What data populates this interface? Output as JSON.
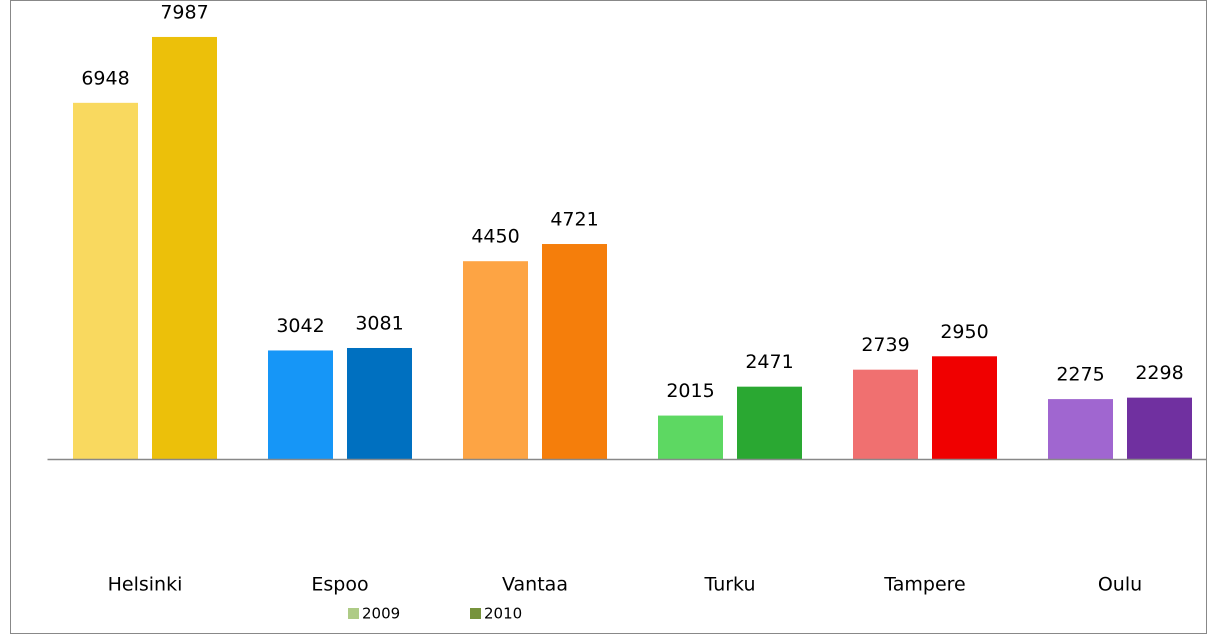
{
  "chart_data": {
    "type": "bar",
    "categories": [
      "Helsinki",
      "Espoo",
      "Vantaa",
      "Turku",
      "Tampere",
      "Oulu"
    ],
    "series": [
      {
        "name": "2009",
        "color": "#aecb86",
        "values": [
          6948,
          3042,
          4450,
          2015,
          2739,
          2275
        ],
        "bar_colors": [
          "#f9d95f",
          "#1696f7",
          "#fda444",
          "#5dd862",
          "#f07070",
          "#a066d0"
        ]
      },
      {
        "name": "2010",
        "color": "#77933c",
        "values": [
          7987,
          3081,
          4721,
          2471,
          2950,
          2298
        ],
        "bar_colors": [
          "#ecc00a",
          "#0070c0",
          "#f57e0b",
          "#2aa832",
          "#f00000",
          "#7030a0"
        ]
      }
    ],
    "ylim": [
      1330,
      8570
    ],
    "legend": "bottom"
  }
}
